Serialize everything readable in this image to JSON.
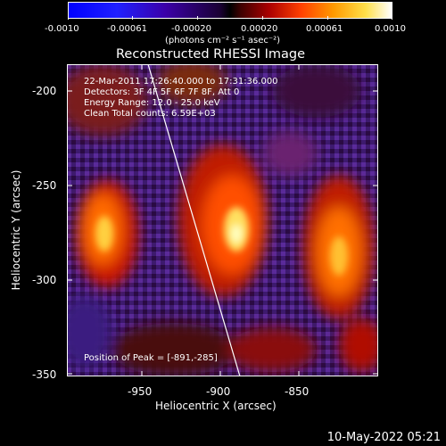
{
  "colorbar": {
    "ticks": [
      "-0.0010",
      "-0.00061",
      "-0.00020",
      "0.00020",
      "0.00061",
      "0.0010"
    ],
    "unit_label": "(photons cm⁻² s⁻¹ asec⁻²)"
  },
  "title": "Reconstructed RHESSI Image",
  "info": {
    "line1": "22-Mar-2011 17:26:40.000 to 17:31:36.000",
    "line2": "Detectors: 3F 4F 5F 6F 7F 8F, Att 0",
    "line3": "Energy Range: 12.0 - 25.0 keV",
    "line4": "Clean     Total counts: 6.59E+03",
    "peak": "Position of Peak = [-891,-285]"
  },
  "y_axis": {
    "label": "Heliocentric Y (arcsec)",
    "ticks": [
      "-200",
      "-250",
      "-300",
      "-350"
    ]
  },
  "x_axis": {
    "label": "Heliocentric X (arcsec)",
    "ticks": [
      "-950",
      "-900",
      "-850"
    ]
  },
  "timestamp": "10-May-2022 05:21",
  "colors": {
    "background": "#000000",
    "text": "#ffffff"
  }
}
